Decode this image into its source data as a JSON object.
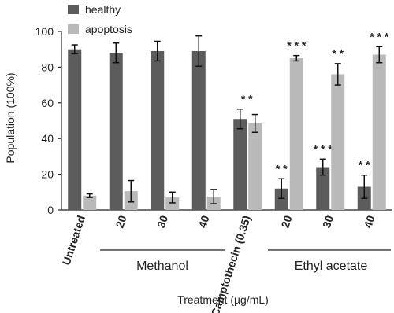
{
  "chart_data": {
    "type": "bar",
    "title_x": "Treatment (µg/mL)",
    "title_y": "Population (100%)",
    "categories": [
      "Untreated",
      "20",
      "30",
      "40",
      "Camptothecin (0.35)",
      "20",
      "30",
      "40"
    ],
    "groups": [
      "Methanol",
      "Ethyl acetate"
    ],
    "series": [
      {
        "name": "healthy",
        "color": "#5c5c5c",
        "values": [
          90,
          88,
          89,
          89,
          51,
          12,
          24,
          13
        ],
        "errors": [
          2.5,
          5.5,
          5.5,
          8.5,
          5.5,
          5.5,
          4.5,
          6.5
        ],
        "significance": [
          null,
          null,
          null,
          null,
          "* *",
          "* *",
          "* * *",
          "* *"
        ]
      },
      {
        "name": "apoptosis",
        "color": "#b9b9b9",
        "values": [
          8,
          10.5,
          7,
          7.5,
          48.5,
          85,
          76,
          87
        ],
        "errors": [
          1,
          6,
          3,
          4,
          5,
          1.5,
          6,
          4.5
        ],
        "significance": [
          null,
          null,
          null,
          null,
          null,
          "* * *",
          "* *",
          "* * *"
        ]
      }
    ],
    "ylim": [
      0,
      100
    ],
    "yticks": [
      0,
      20,
      40,
      60,
      80,
      100
    ]
  }
}
